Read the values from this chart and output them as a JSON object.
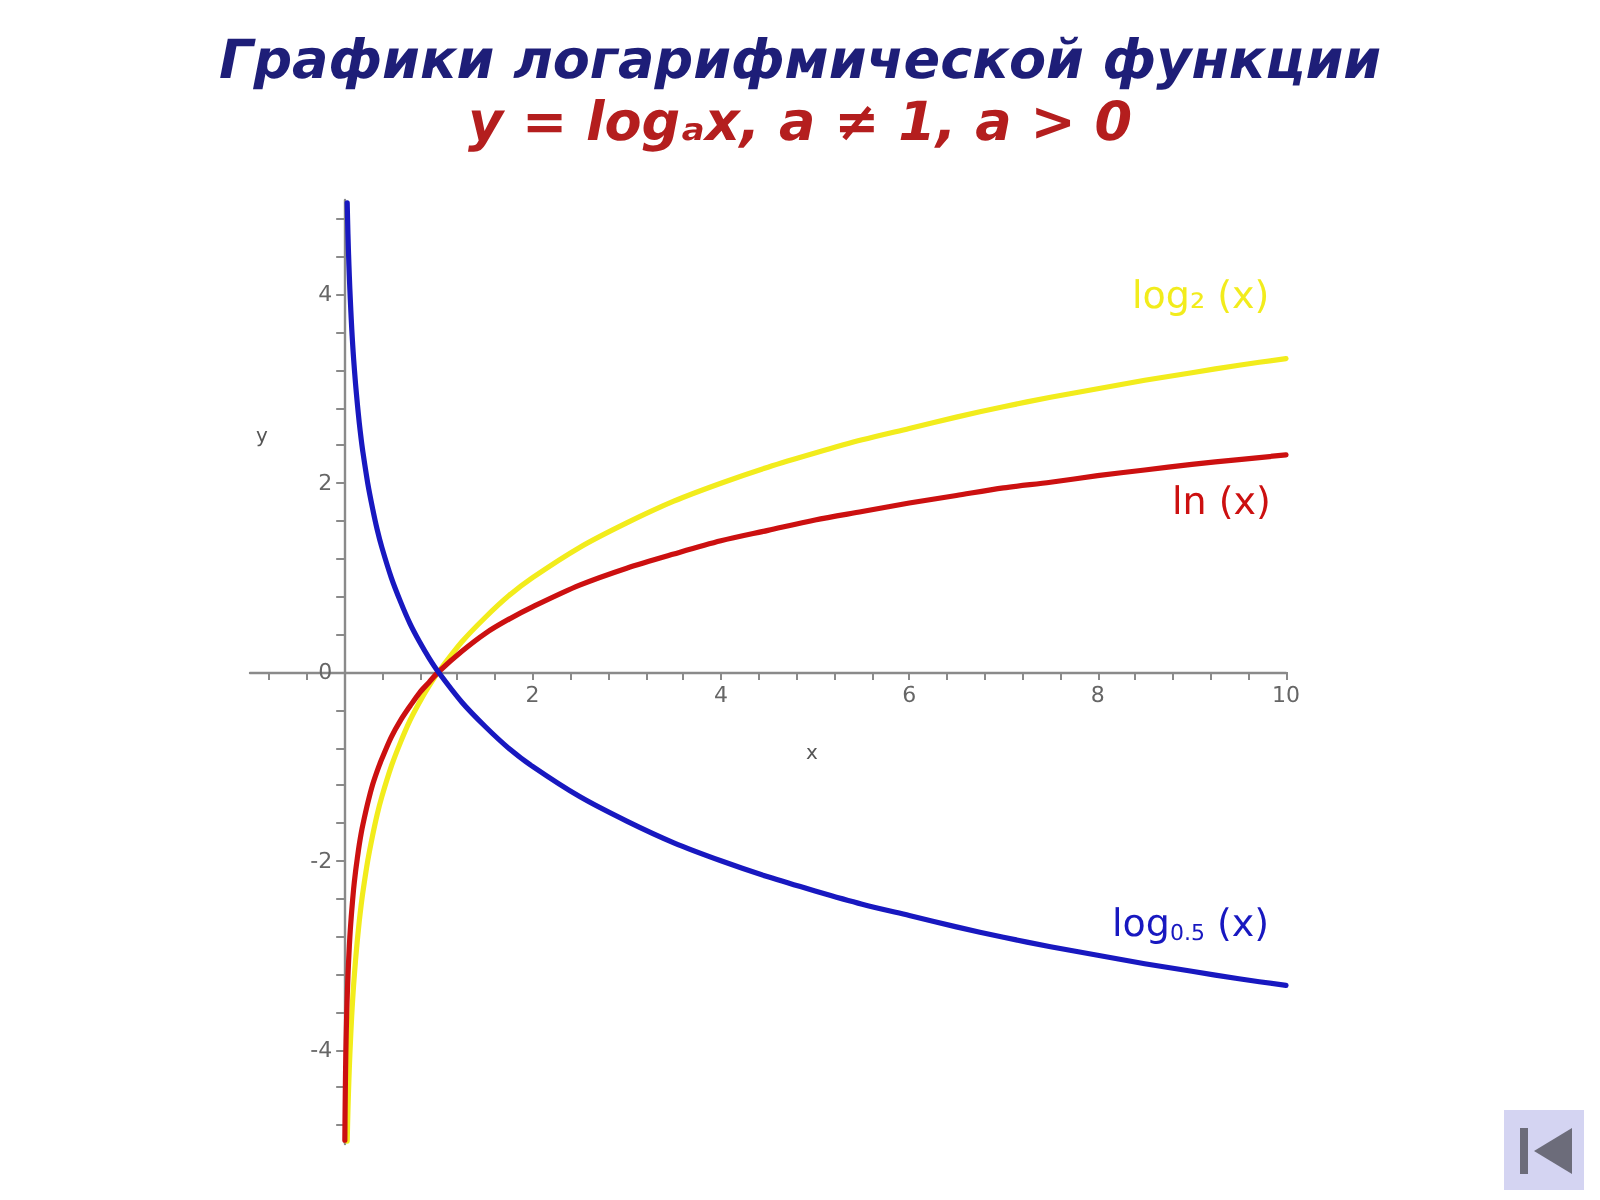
{
  "chart_data": {
    "type": "line",
    "title": "Графики логарифмической функции",
    "subtitle": "y = logₐx, a ≠ 1, a > 0",
    "xlabel": "x",
    "ylabel": "y",
    "xlim": [
      -1,
      10
    ],
    "ylim": [
      -5,
      5
    ],
    "xticks": [
      {
        "value": -0.8,
        "label": null
      },
      {
        "value": -0.4,
        "label": null
      },
      {
        "value": 0.4,
        "label": null
      },
      {
        "value": 0.8,
        "label": null
      },
      {
        "value": 1.2,
        "label": null
      },
      {
        "value": 1.6,
        "label": null
      },
      2,
      {
        "value": 2.4,
        "label": null
      },
      {
        "value": 2.8,
        "label": null
      },
      {
        "value": 3.2,
        "label": null
      },
      {
        "value": 3.6,
        "label": null
      },
      4,
      {
        "value": 4.4,
        "label": null
      },
      {
        "value": 4.8,
        "label": null
      },
      {
        "value": 5.2,
        "label": null
      },
      {
        "value": 5.6,
        "label": null
      },
      6,
      {
        "value": 6.4,
        "label": null
      },
      {
        "value": 6.8,
        "label": null
      },
      {
        "value": 7.2,
        "label": null
      },
      {
        "value": 7.6,
        "label": null
      },
      8,
      {
        "value": 8.4,
        "label": null
      },
      {
        "value": 8.8,
        "label": null
      },
      {
        "value": 9.2,
        "label": null
      },
      {
        "value": 9.6,
        "label": null
      },
      10
    ],
    "yticks": [
      {
        "value": -4.8,
        "label": null
      },
      {
        "value": -4.4,
        "label": null
      },
      -4,
      {
        "value": -3.6,
        "label": null
      },
      {
        "value": -3.2,
        "label": null
      },
      {
        "value": -2.8,
        "label": null
      },
      {
        "value": -2.4,
        "label": null
      },
      -2,
      {
        "value": -1.6,
        "label": null
      },
      {
        "value": -1.2,
        "label": null
      },
      {
        "value": -0.8,
        "label": null
      },
      {
        "value": -0.4,
        "label": null
      },
      0,
      {
        "value": 0.4,
        "label": null
      },
      {
        "value": 0.8,
        "label": null
      },
      {
        "value": 1.2,
        "label": null
      },
      {
        "value": 1.6,
        "label": null
      },
      2,
      {
        "value": 2.4,
        "label": null
      },
      {
        "value": 2.8,
        "label": null
      },
      {
        "value": 3.2,
        "label": null
      },
      {
        "value": 3.6,
        "label": null
      },
      4,
      {
        "value": 4.4,
        "label": null
      },
      {
        "value": 4.8,
        "label": null
      }
    ],
    "series": [
      {
        "name": "log₂ (x)",
        "color": "#f2ec1c",
        "x": [
          0.032,
          0.04,
          0.05,
          0.06,
          0.07,
          0.08,
          0.09,
          0.1,
          0.12,
          0.14,
          0.16,
          0.18,
          0.2,
          0.25,
          0.3,
          0.35,
          0.4,
          0.5,
          0.6,
          0.7,
          0.8,
          0.9,
          1,
          1.25,
          1.5,
          1.75,
          2,
          2.5,
          3,
          3.5,
          4,
          4.5,
          5,
          5.5,
          6,
          6.5,
          7,
          7.5,
          8,
          8.5,
          9,
          9.5,
          10
        ],
        "values": [
          -4.97,
          -4.64,
          -4.32,
          -4.06,
          -3.84,
          -3.64,
          -3.47,
          -3.32,
          -3.06,
          -2.84,
          -2.64,
          -2.47,
          -2.32,
          -2,
          -1.74,
          -1.51,
          -1.32,
          -1,
          -0.74,
          -0.51,
          -0.32,
          -0.15,
          0,
          0.32,
          0.58,
          0.81,
          1,
          1.32,
          1.58,
          1.81,
          2,
          2.17,
          2.32,
          2.46,
          2.58,
          2.7,
          2.81,
          2.91,
          3,
          3.09,
          3.17,
          3.25,
          3.32
        ]
      },
      {
        "name": "ln (x)",
        "color": "#cc1010",
        "x": [
          0.007,
          0.01,
          0.015,
          0.02,
          0.025,
          0.03,
          0.04,
          0.05,
          0.06,
          0.07,
          0.08,
          0.1,
          0.12,
          0.14,
          0.16,
          0.18,
          0.2,
          0.25,
          0.3,
          0.35,
          0.4,
          0.5,
          0.6,
          0.7,
          0.8,
          0.9,
          1,
          1.25,
          1.5,
          1.75,
          2,
          2.5,
          3,
          3.5,
          4,
          4.5,
          5,
          5.5,
          6,
          6.5,
          7,
          7.5,
          8,
          8.5,
          9,
          9.5,
          10
        ],
        "values": [
          -4.96,
          -4.61,
          -4.2,
          -3.91,
          -3.69,
          -3.51,
          -3.22,
          -3,
          -2.81,
          -2.66,
          -2.53,
          -2.3,
          -2.12,
          -1.97,
          -1.83,
          -1.71,
          -1.61,
          -1.39,
          -1.2,
          -1.05,
          -0.92,
          -0.69,
          -0.51,
          -0.36,
          -0.22,
          -0.11,
          0,
          0.22,
          0.41,
          0.56,
          0.69,
          0.92,
          1.1,
          1.25,
          1.39,
          1.5,
          1.61,
          1.7,
          1.79,
          1.87,
          1.95,
          2.01,
          2.08,
          2.14,
          2.2,
          2.25,
          2.3
        ]
      },
      {
        "name": "log$_{0.5}$ (x)",
        "color": "#1818c0",
        "x": [
          0.032,
          0.04,
          0.05,
          0.06,
          0.07,
          0.08,
          0.09,
          0.1,
          0.12,
          0.14,
          0.16,
          0.18,
          0.2,
          0.25,
          0.3,
          0.35,
          0.4,
          0.5,
          0.6,
          0.7,
          0.8,
          0.9,
          1,
          1.25,
          1.5,
          1.75,
          2,
          2.5,
          3,
          3.5,
          4,
          4.5,
          5,
          5.5,
          6,
          6.5,
          7,
          7.5,
          8,
          8.5,
          9,
          9.5,
          10
        ],
        "values": [
          4.97,
          4.64,
          4.32,
          4.06,
          3.84,
          3.64,
          3.47,
          3.32,
          3.06,
          2.84,
          2.64,
          2.47,
          2.32,
          2,
          1.74,
          1.51,
          1.32,
          1,
          0.74,
          0.51,
          0.32,
          0.15,
          0,
          -0.32,
          -0.58,
          -0.81,
          -1,
          -1.32,
          -1.58,
          -1.81,
          -2,
          -2.17,
          -2.32,
          -2.46,
          -2.58,
          -2.7,
          -2.81,
          -2.91,
          -3,
          -3.09,
          -3.17,
          -3.25,
          -3.32
        ]
      }
    ],
    "marker": "none",
    "line_style": "solid",
    "grid": false,
    "legend": false
  }
}
